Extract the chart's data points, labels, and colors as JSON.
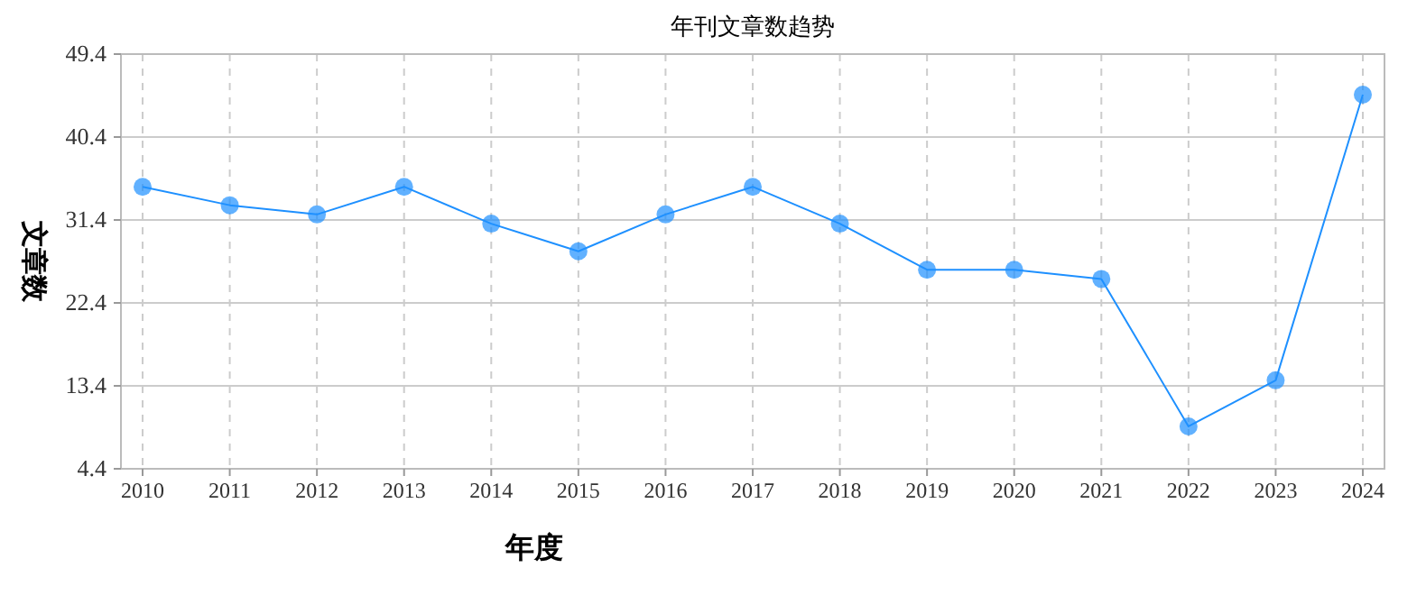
{
  "chart_data": {
    "type": "line",
    "title": "年刊文章数趋势",
    "xlabel": "年度",
    "ylabel": "文章数",
    "categories": [
      "2010",
      "2011",
      "2012",
      "2013",
      "2014",
      "2015",
      "2016",
      "2017",
      "2018",
      "2019",
      "2020",
      "2021",
      "2022",
      "2023",
      "2024"
    ],
    "series": [
      {
        "color": "#1e90ff",
        "values": [
          35,
          33,
          32,
          35,
          31,
          28,
          32,
          35,
          31,
          26,
          26,
          25,
          9,
          14,
          45
        ]
      }
    ],
    "ylim": [
      4.4,
      49.4
    ],
    "yticks": [
      4.4,
      13.4,
      22.4,
      31.4,
      40.4,
      49.4
    ],
    "grid": true,
    "marker": "circle",
    "line_style": "solid"
  }
}
